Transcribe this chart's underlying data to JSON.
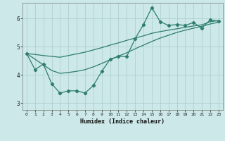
{
  "xlabel": "Humidex (Indice chaleur)",
  "background_color": "#cce8e8",
  "grid_color": "#aacccc",
  "line_color": "#2e7d6e",
  "xlim": [
    -0.5,
    23.5
  ],
  "ylim": [
    2.75,
    6.55
  ],
  "x_ticks": [
    0,
    1,
    2,
    3,
    4,
    5,
    6,
    7,
    8,
    9,
    10,
    11,
    12,
    13,
    14,
    15,
    16,
    17,
    18,
    19,
    20,
    21,
    22,
    23
  ],
  "y_ticks": [
    3,
    4,
    5,
    6
  ],
  "series": {
    "line1": {
      "x": [
        0,
        1,
        2,
        3,
        4,
        5,
        6,
        7,
        8,
        9,
        10,
        11,
        12,
        13,
        14,
        15,
        16,
        17,
        18,
        19,
        20,
        21,
        22,
        23
      ],
      "y": [
        4.75,
        4.18,
        4.38,
        3.68,
        3.35,
        3.43,
        3.43,
        3.35,
        3.62,
        4.12,
        4.55,
        4.65,
        4.65,
        5.28,
        5.78,
        6.38,
        5.88,
        5.75,
        5.78,
        5.75,
        5.85,
        5.65,
        5.95,
        5.9
      ]
    },
    "line2": {
      "x": [
        0,
        1,
        2,
        3,
        4,
        5,
        6,
        7,
        8,
        9,
        10,
        11,
        12,
        13,
        14,
        15,
        16,
        17,
        18,
        19,
        20,
        21,
        22,
        23
      ],
      "y": [
        4.75,
        4.72,
        4.68,
        4.65,
        4.62,
        4.68,
        4.74,
        4.8,
        4.88,
        4.96,
        5.05,
        5.13,
        5.22,
        5.3,
        5.38,
        5.47,
        5.53,
        5.58,
        5.63,
        5.68,
        5.73,
        5.77,
        5.88,
        5.92
      ]
    },
    "line3": {
      "x": [
        0,
        1,
        2,
        3,
        4,
        5,
        6,
        7,
        8,
        9,
        10,
        11,
        12,
        13,
        14,
        15,
        16,
        17,
        18,
        19,
        20,
        21,
        22,
        23
      ],
      "y": [
        4.75,
        4.55,
        4.35,
        4.15,
        4.05,
        4.08,
        4.12,
        4.18,
        4.28,
        4.4,
        4.53,
        4.66,
        4.78,
        4.92,
        5.05,
        5.18,
        5.3,
        5.4,
        5.5,
        5.58,
        5.65,
        5.72,
        5.8,
        5.86
      ]
    }
  }
}
